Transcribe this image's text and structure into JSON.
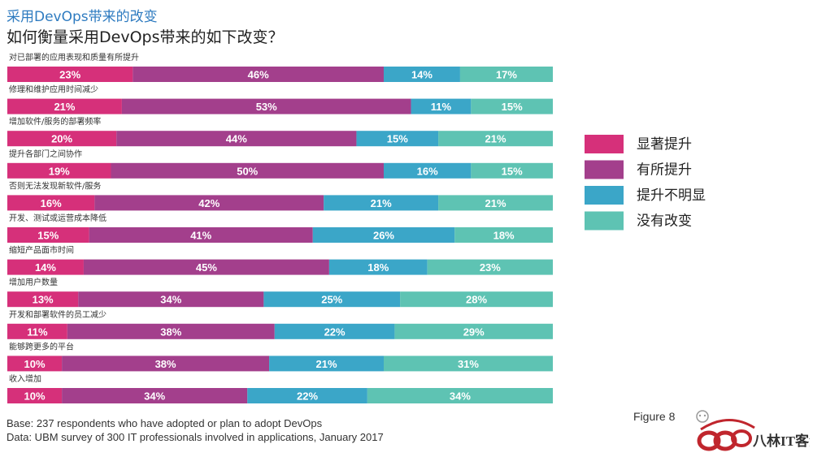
{
  "header": {
    "title": "采用DevOps带来的改变",
    "subtitle": "如何衡量采用DevOps带来的如下改变？"
  },
  "footer": {
    "base": "Base: 237 respondents who have adopted or plan to adopt DevOps",
    "data_source": "Data: UBM survey of 300 IT professionals involved in applications, January 2017",
    "figure_label": "Figure 8",
    "watermark_text": "八林IT客汇"
  },
  "colors": {
    "significant": "#d6307a",
    "some": "#a33f8c",
    "unclear": "#3ba6c8",
    "none": "#5ec3b3"
  },
  "chart_data": {
    "type": "bar",
    "orientation": "horizontal-stacked-100",
    "title": "如何衡量采用DevOps带来的如下改变？",
    "xlim": [
      0,
      100
    ],
    "value_suffix": "%",
    "legend_position": "right",
    "categories": [
      "对已部署的应用表现和质量有所提升",
      "修理和维护应用时间减少",
      "增加软件/服务的部署频率",
      "提升各部门之间协作",
      "否则无法发现新软件/服务",
      "开发、测试或运营成本降低",
      "缩短产品面市时间",
      "增加用户数量",
      "开发和部署软件的员工减少",
      "能够跨更多的平台",
      "收入增加"
    ],
    "series": [
      {
        "name": "显著提升",
        "color": "#d6307a",
        "values": [
          23,
          21,
          20,
          19,
          16,
          15,
          14,
          13,
          11,
          10,
          10
        ]
      },
      {
        "name": "有所提升",
        "color": "#a33f8c",
        "values": [
          46,
          53,
          44,
          50,
          42,
          41,
          45,
          34,
          38,
          38,
          34
        ]
      },
      {
        "name": "提升不明显",
        "color": "#3ba6c8",
        "values": [
          14,
          11,
          15,
          16,
          21,
          26,
          18,
          25,
          22,
          21,
          22
        ]
      },
      {
        "name": "没有改变",
        "color": "#5ec3b3",
        "values": [
          17,
          15,
          21,
          15,
          21,
          18,
          23,
          28,
          29,
          31,
          34
        ]
      }
    ]
  }
}
